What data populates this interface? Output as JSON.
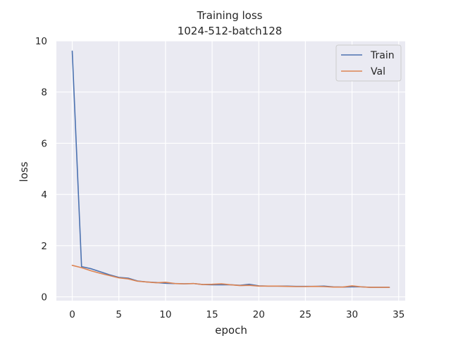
{
  "chart_data": {
    "type": "line",
    "title": "Training loss",
    "subtitle": "1024-512-batch128",
    "xlabel": "epoch",
    "ylabel": "loss",
    "xlim": [
      -1.7,
      35.7
    ],
    "ylim": [
      -0.15,
      10.0
    ],
    "xticks": [
      0,
      5,
      10,
      15,
      20,
      25,
      30,
      35
    ],
    "yticks": [
      0,
      2,
      4,
      6,
      8,
      10
    ],
    "grid": true,
    "legend_position": "top-right",
    "x": [
      0,
      1,
      2,
      3,
      4,
      5,
      6,
      7,
      8,
      9,
      10,
      11,
      12,
      13,
      14,
      15,
      16,
      17,
      18,
      19,
      20,
      21,
      22,
      23,
      24,
      25,
      26,
      27,
      28,
      29,
      30,
      31,
      32,
      33,
      34
    ],
    "series": [
      {
        "name": "Train",
        "color": "#4c72b0",
        "values": [
          9.6,
          1.18,
          1.1,
          0.98,
          0.86,
          0.76,
          0.73,
          0.62,
          0.58,
          0.56,
          0.53,
          0.52,
          0.51,
          0.52,
          0.48,
          0.47,
          0.47,
          0.47,
          0.45,
          0.49,
          0.43,
          0.42,
          0.42,
          0.42,
          0.41,
          0.41,
          0.41,
          0.42,
          0.39,
          0.38,
          0.39,
          0.39,
          0.37,
          0.37,
          0.37
        ]
      },
      {
        "name": "Val",
        "color": "#dd8452",
        "values": [
          1.23,
          1.14,
          1.02,
          0.92,
          0.83,
          0.74,
          0.7,
          0.61,
          0.58,
          0.55,
          0.57,
          0.52,
          0.51,
          0.52,
          0.48,
          0.49,
          0.51,
          0.47,
          0.44,
          0.45,
          0.42,
          0.42,
          0.42,
          0.41,
          0.4,
          0.4,
          0.41,
          0.4,
          0.38,
          0.38,
          0.43,
          0.39,
          0.37,
          0.37,
          0.37
        ]
      }
    ]
  }
}
